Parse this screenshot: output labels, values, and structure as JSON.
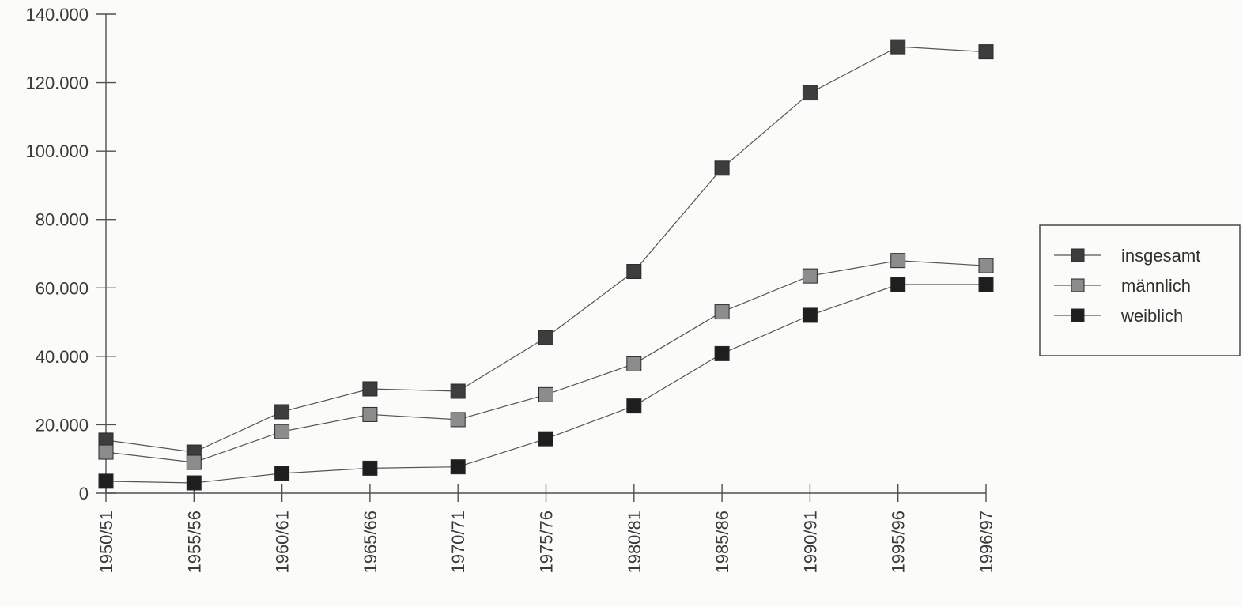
{
  "chart_data": {
    "type": "line",
    "categories": [
      "1950/51",
      "1955/56",
      "1960/61",
      "1965/66",
      "1970/71",
      "1975/76",
      "1980/81",
      "1985/86",
      "1990/91",
      "1995/96",
      "1996/97"
    ],
    "ylim": [
      0,
      140000
    ],
    "yticks": [
      {
        "value": 0,
        "label": "0"
      },
      {
        "value": 20000,
        "label": "20.000"
      },
      {
        "value": 40000,
        "label": "40.000"
      },
      {
        "value": 60000,
        "label": "60.000"
      },
      {
        "value": 80000,
        "label": "80.000"
      },
      {
        "value": 100000,
        "label": "100.000"
      },
      {
        "value": 120000,
        "label": "120.000"
      },
      {
        "value": 140000,
        "label": "140.000"
      }
    ],
    "legend_position": "right",
    "grid": false,
    "series": [
      {
        "name": "insgesamt",
        "color": "#3d3d3d",
        "values": [
          15500,
          12000,
          23800,
          30500,
          29800,
          45500,
          64800,
          95000,
          117000,
          130500,
          129000
        ]
      },
      {
        "name": "männlich",
        "color": "#8c8c8c",
        "values": [
          12000,
          9000,
          18000,
          23000,
          21500,
          28800,
          37800,
          53000,
          63500,
          68000,
          66500
        ]
      },
      {
        "name": "weiblich",
        "color": "#1e1e1e",
        "values": [
          3500,
          3000,
          5800,
          7300,
          7700,
          15900,
          25500,
          40800,
          52000,
          61000,
          61000
        ]
      }
    ]
  }
}
